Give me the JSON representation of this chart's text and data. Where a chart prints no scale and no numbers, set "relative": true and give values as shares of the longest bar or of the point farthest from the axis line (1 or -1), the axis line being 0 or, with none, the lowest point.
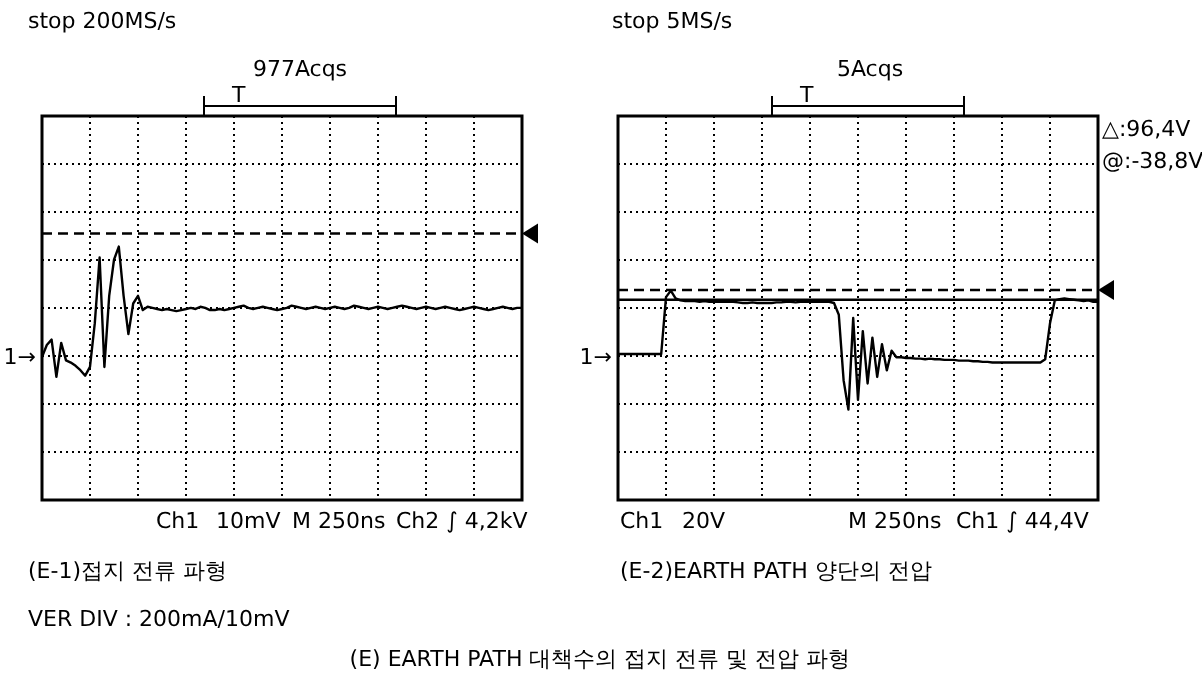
{
  "chart_data": [
    {
      "type": "line",
      "title": "stop 200MS/s",
      "relative": true,
      "grid": true,
      "line_style": "solid",
      "categories": [
        null,
        null,
        null,
        null,
        null,
        null,
        null,
        null,
        null,
        null,
        null,
        null,
        null,
        null,
        null,
        null,
        null,
        null,
        null,
        null,
        null,
        null,
        null,
        null,
        null,
        null,
        null,
        null,
        null,
        null,
        null,
        null,
        null,
        null,
        null,
        null,
        null,
        null,
        null,
        null,
        null,
        null,
        null,
        null,
        null,
        null,
        null,
        null,
        null,
        null,
        null,
        null,
        null,
        null,
        null,
        null,
        null,
        null,
        null,
        null,
        null,
        null,
        null,
        null,
        null,
        null,
        null,
        null,
        null,
        null,
        null,
        null,
        null,
        null,
        null,
        null,
        null,
        null,
        null,
        null,
        null,
        null,
        null,
        null,
        null,
        null,
        null,
        null,
        null,
        null,
        null,
        null,
        null,
        null,
        null,
        null,
        null,
        null,
        null,
        null,
        null
      ],
      "series": [
        {
          "color": "#000000",
          "values": [
            -0.01,
            0.1,
            0.15,
            -0.19,
            0.12,
            -0.04,
            -0.06,
            -0.09,
            -0.13,
            -0.18,
            -0.1,
            0.3,
            0.9,
            -0.1,
            0.55,
            0.88,
            1.0,
            0.55,
            0.2,
            0.48,
            0.55,
            0.42,
            0.45,
            0.44,
            0.43,
            0.42,
            0.43,
            0.42,
            0.41,
            0.42,
            0.43,
            0.44,
            0.43,
            0.45,
            0.44,
            0.42,
            0.42,
            0.43,
            0.42,
            0.43,
            0.44,
            0.45,
            0.46,
            0.44,
            0.43,
            0.44,
            0.45,
            0.44,
            0.43,
            0.42,
            0.43,
            0.44,
            0.46,
            0.45,
            0.44,
            0.43,
            0.44,
            0.45,
            0.44,
            0.43,
            0.44,
            0.45,
            0.44,
            0.43,
            0.44,
            0.46,
            0.45,
            0.44,
            0.43,
            0.44,
            0.45,
            0.44,
            0.43,
            0.44,
            0.45,
            0.46,
            0.45,
            0.44,
            0.43,
            0.44,
            0.45,
            0.44,
            0.43,
            0.44,
            0.45,
            0.44,
            0.43,
            0.42,
            0.43,
            0.44,
            0.45,
            0.44,
            0.43,
            0.42,
            0.43,
            0.44,
            0.45,
            0.44,
            0.43,
            0.44,
            0.44
          ]
        }
      ],
      "ref_lines": [
        {
          "axis": "y",
          "value": 1.12,
          "line_style": "dashed",
          "color": "#000000"
        }
      ],
      "annotations": [
        "977Acqs",
        "T",
        "1→",
        "Ch1",
        "10mV",
        "M 250ns",
        "Ch2 ∫ 4,2kV",
        "(E-1)접지 전류 파형",
        "VER DIV : 200mA/10mV"
      ]
    },
    {
      "type": "line",
      "title": "stop 5MS/s",
      "relative": true,
      "grid": true,
      "line_style": "solid",
      "categories": [
        null,
        null,
        null,
        null,
        null,
        null,
        null,
        null,
        null,
        null,
        null,
        null,
        null,
        null,
        null,
        null,
        null,
        null,
        null,
        null,
        null,
        null,
        null,
        null,
        null,
        null,
        null,
        null,
        null,
        null,
        null,
        null,
        null,
        null,
        null,
        null,
        null,
        null,
        null,
        null,
        null,
        null,
        null,
        null,
        null,
        null,
        null,
        null,
        null,
        null,
        null,
        null,
        null,
        null,
        null,
        null,
        null,
        null,
        null,
        null,
        null,
        null,
        null,
        null,
        null,
        null,
        null,
        null,
        null,
        null,
        null,
        null,
        null,
        null,
        null,
        null,
        null,
        null,
        null,
        null,
        null,
        null,
        null,
        null,
        null,
        null,
        null,
        null,
        null,
        null,
        null,
        null,
        null,
        null,
        null,
        null,
        null,
        null,
        null,
        null,
        null
      ],
      "series": [
        {
          "color": "#000000",
          "values": [
            0.03,
            0.03,
            0.03,
            0.03,
            0.03,
            0.03,
            0.03,
            0.03,
            0.03,
            0.03,
            0.9,
            1.0,
            0.88,
            0.85,
            0.84,
            0.84,
            0.84,
            0.83,
            0.84,
            0.83,
            0.83,
            0.83,
            0.83,
            0.83,
            0.83,
            0.82,
            0.81,
            0.81,
            0.82,
            0.81,
            0.81,
            0.81,
            0.81,
            0.82,
            0.82,
            0.83,
            0.83,
            0.82,
            0.83,
            0.83,
            0.83,
            0.83,
            0.83,
            0.83,
            0.83,
            0.81,
            0.63,
            -0.37,
            -0.82,
            0.58,
            -0.67,
            0.38,
            -0.42,
            0.28,
            -0.32,
            0.18,
            -0.22,
            0.08,
            -0.02,
            -0.02,
            -0.03,
            -0.03,
            -0.04,
            -0.04,
            -0.05,
            -0.04,
            -0.05,
            -0.05,
            -0.06,
            -0.06,
            -0.06,
            -0.07,
            -0.07,
            -0.07,
            -0.08,
            -0.08,
            -0.09,
            -0.09,
            -0.1,
            -0.1,
            -0.1,
            -0.1,
            -0.1,
            -0.1,
            -0.1,
            -0.1,
            -0.1,
            -0.1,
            -0.1,
            -0.05,
            0.5,
            0.85,
            0.87,
            0.88,
            0.87,
            0.86,
            0.85,
            0.84,
            0.85,
            0.83,
            0.83
          ]
        }
      ],
      "ref_lines": [
        {
          "axis": "y",
          "value": 1.01,
          "line_style": "dashed",
          "color": "#000000"
        },
        {
          "axis": "y",
          "value": 0.86,
          "line_style": "solid",
          "color": "#000000"
        }
      ],
      "annotations": [
        "5Acqs",
        "T",
        "1→",
        "Ch1",
        "20V",
        "M 250ns",
        "Ch1 ∫ 44,4V",
        "△:96,4V",
        "@:-38,8V",
        "(E-2)EARTH PATH 양단의 전압",
        "(E) EARTH PATH 대책수의 접지 전류 및 전압 파형"
      ]
    }
  ]
}
